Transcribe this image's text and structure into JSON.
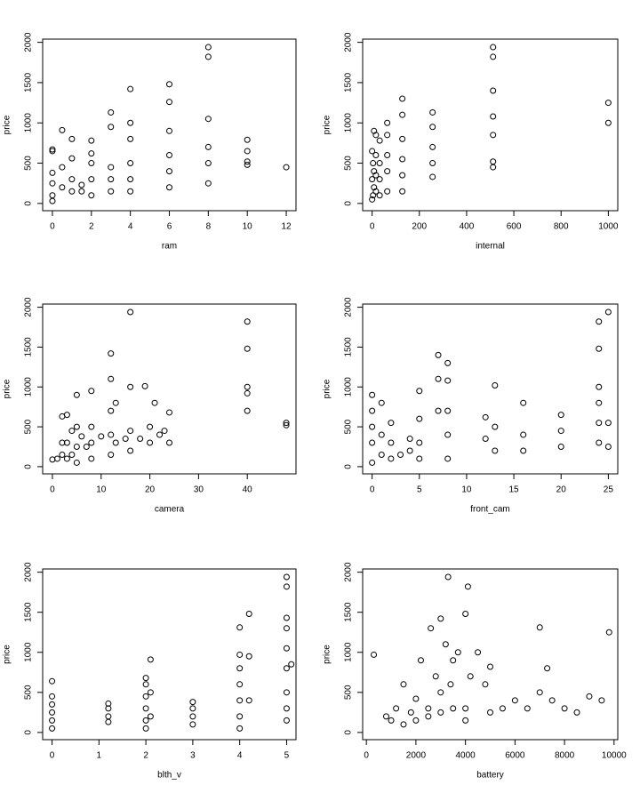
{
  "chart_data": [
    {
      "type": "scatter",
      "xlabel": "ram",
      "ylabel": "price",
      "xlim": [
        -0.5,
        12.5
      ],
      "ylim": [
        -90,
        2040
      ],
      "xticks": [
        0,
        2,
        4,
        6,
        8,
        10,
        12
      ],
      "yticks": [
        0,
        500,
        1000,
        1500,
        2000
      ],
      "x": [
        0,
        0,
        0,
        0,
        0,
        0,
        0.5,
        0.5,
        0.5,
        1,
        1,
        1,
        1,
        1.5,
        1.5,
        2,
        2,
        2,
        2,
        2,
        3,
        3,
        3,
        3,
        3,
        4,
        4,
        4,
        4,
        4,
        4,
        6,
        6,
        6,
        6,
        6,
        6,
        8,
        8,
        8,
        8,
        8,
        8,
        10,
        10,
        10,
        10,
        12
      ],
      "y": [
        100,
        250,
        380,
        670,
        650,
        30,
        200,
        450,
        910,
        150,
        300,
        560,
        800,
        150,
        230,
        100,
        300,
        500,
        620,
        780,
        150,
        300,
        450,
        950,
        1130,
        150,
        300,
        500,
        800,
        1000,
        1420,
        200,
        400,
        600,
        900,
        1260,
        1480,
        250,
        500,
        700,
        1050,
        1820,
        1940,
        480,
        520,
        650,
        790,
        450
      ]
    },
    {
      "type": "scatter",
      "xlabel": "internal",
      "ylabel": "price",
      "xlim": [
        -40,
        1040
      ],
      "ylim": [
        -90,
        2040
      ],
      "xticks": [
        0,
        200,
        400,
        600,
        800,
        1000
      ],
      "yticks": [
        0,
        500,
        1000,
        1500,
        2000
      ],
      "x": [
        0,
        0,
        0,
        4,
        4,
        8,
        8,
        8,
        16,
        16,
        16,
        16,
        32,
        32,
        32,
        32,
        64,
        64,
        64,
        64,
        64,
        128,
        128,
        128,
        128,
        128,
        128,
        256,
        256,
        256,
        256,
        256,
        512,
        512,
        512,
        512,
        512,
        512,
        512,
        1000,
        1000
      ],
      "y": [
        50,
        300,
        650,
        100,
        500,
        200,
        400,
        900,
        150,
        350,
        600,
        850,
        100,
        300,
        500,
        780,
        150,
        400,
        600,
        850,
        1000,
        150,
        350,
        550,
        800,
        1100,
        1300,
        330,
        500,
        700,
        950,
        1130,
        450,
        520,
        850,
        1080,
        1400,
        1820,
        1940,
        1000,
        1250
      ]
    },
    {
      "type": "scatter",
      "xlabel": "camera",
      "ylabel": "price",
      "xlim": [
        -2,
        50
      ],
      "ylim": [
        -90,
        2040
      ],
      "xticks": [
        0,
        10,
        20,
        30,
        40
      ],
      "yticks": [
        0,
        500,
        1000,
        1500,
        2000
      ],
      "x": [
        0,
        1,
        2,
        2,
        2,
        3,
        3,
        3,
        4,
        4,
        5,
        5,
        5,
        5,
        6,
        7,
        8,
        8,
        8,
        8,
        10,
        12,
        12,
        12,
        12,
        12,
        13,
        13,
        15,
        16,
        16,
        16,
        16,
        18,
        19,
        20,
        20,
        21,
        22,
        23,
        24,
        24,
        40,
        40,
        40,
        40,
        40,
        48,
        48
      ],
      "y": [
        90,
        100,
        150,
        300,
        630,
        100,
        300,
        650,
        150,
        450,
        50,
        250,
        500,
        900,
        380,
        250,
        100,
        300,
        500,
        950,
        380,
        150,
        400,
        700,
        1100,
        1420,
        300,
        800,
        350,
        200,
        450,
        1000,
        1940,
        350,
        1010,
        300,
        500,
        800,
        400,
        450,
        300,
        680,
        700,
        920,
        1000,
        1480,
        1820,
        520,
        550
      ]
    },
    {
      "type": "scatter",
      "xlabel": "front_cam",
      "ylabel": "price",
      "xlim": [
        -1,
        26
      ],
      "ylim": [
        -90,
        2040
      ],
      "xticks": [
        0,
        5,
        10,
        15,
        20,
        25
      ],
      "yticks": [
        0,
        500,
        1000,
        1500,
        2000
      ],
      "x": [
        0,
        0,
        0,
        0,
        0,
        1,
        1,
        1,
        2,
        2,
        2,
        3,
        4,
        4,
        5,
        5,
        5,
        5,
        7,
        7,
        7,
        8,
        8,
        8,
        8,
        8,
        12,
        12,
        13,
        13,
        13,
        16,
        16,
        16,
        20,
        20,
        20,
        24,
        24,
        24,
        24,
        24,
        24,
        25,
        25,
        25
      ],
      "y": [
        50,
        300,
        500,
        700,
        900,
        150,
        400,
        800,
        100,
        300,
        550,
        150,
        200,
        350,
        100,
        300,
        600,
        950,
        700,
        1100,
        1400,
        100,
        400,
        700,
        1080,
        1300,
        350,
        620,
        200,
        500,
        1020,
        200,
        400,
        800,
        250,
        450,
        650,
        300,
        550,
        800,
        1000,
        1480,
        1820,
        250,
        550,
        1940
      ]
    },
    {
      "type": "scatter",
      "xlabel": "blth_v",
      "ylabel": "price",
      "xlim": [
        -0.2,
        5.2
      ],
      "ylim": [
        -90,
        2040
      ],
      "xticks": [
        0,
        1,
        2,
        3,
        4,
        5
      ],
      "yticks": [
        0,
        500,
        1000,
        1500,
        2000
      ],
      "x": [
        0,
        0,
        0,
        0,
        0,
        0,
        1.2,
        1.2,
        1.2,
        1.2,
        2,
        2,
        2,
        2,
        2,
        2,
        2.1,
        2.1,
        2.1,
        3,
        3,
        3,
        3,
        4,
        4,
        4,
        4,
        4,
        4,
        4,
        4.2,
        4.2,
        4.2,
        5,
        5,
        5,
        5,
        5,
        5,
        5,
        5,
        5,
        5.1
      ],
      "y": [
        50,
        150,
        250,
        350,
        450,
        640,
        130,
        200,
        300,
        360,
        50,
        150,
        300,
        450,
        600,
        680,
        200,
        500,
        910,
        100,
        200,
        300,
        380,
        50,
        200,
        400,
        600,
        800,
        970,
        1310,
        400,
        950,
        1480,
        150,
        300,
        500,
        800,
        1050,
        1300,
        1430,
        1820,
        1940,
        850
      ]
    },
    {
      "type": "scatter",
      "xlabel": "battery",
      "ylabel": "price",
      "xlim": [
        -150,
        10150
      ],
      "ylim": [
        -90,
        2040
      ],
      "xticks": [
        0,
        2000,
        4000,
        6000,
        8000,
        10000
      ],
      "yticks": [
        0,
        500,
        1000,
        1500,
        2000
      ],
      "x": [
        300,
        800,
        1000,
        1200,
        1500,
        1500,
        1800,
        2000,
        2000,
        2200,
        2500,
        2500,
        2600,
        2800,
        3000,
        3000,
        3000,
        3200,
        3300,
        3400,
        3500,
        3500,
        3700,
        4000,
        4000,
        4000,
        4100,
        4200,
        4500,
        4800,
        5000,
        5000,
        5500,
        6000,
        6500,
        7000,
        7000,
        7300,
        7500,
        8000,
        8500,
        9000,
        9500,
        9800
      ],
      "y": [
        970,
        200,
        150,
        300,
        600,
        100,
        250,
        420,
        150,
        900,
        300,
        200,
        1300,
        700,
        500,
        250,
        1420,
        1100,
        1940,
        600,
        300,
        900,
        1000,
        1480,
        300,
        150,
        1820,
        700,
        1000,
        600,
        820,
        250,
        300,
        400,
        300,
        500,
        1310,
        800,
        400,
        300,
        250,
        450,
        400,
        1250
      ]
    }
  ]
}
